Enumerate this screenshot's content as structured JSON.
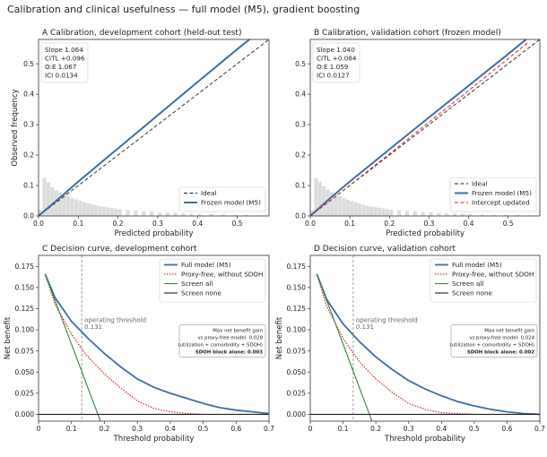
{
  "figure": {
    "title": "Calibration and clinical usefulness — full model (M5), gradient boosting"
  },
  "colors": {
    "model": "#3d6ea5",
    "ideal": "#222222",
    "updated": "#d62728",
    "proxy": "#d62728",
    "screen_all": "#2e8b3f",
    "screen_none": "#222222",
    "hist": "#dcdcdc",
    "threshold": "#888888"
  },
  "chart_data": [
    {
      "id": "A",
      "type": "line",
      "title": "A  Calibration, development cohort (held-out test)",
      "xlabel": "Predicted probability",
      "ylabel": "Observed frequency",
      "xlim": [
        0,
        0.58
      ],
      "ylim": [
        0,
        0.58
      ],
      "xticks": [
        "0.0",
        "0.1",
        "0.2",
        "0.3",
        "0.4",
        "0.5"
      ],
      "yticks": [
        "0.0",
        "0.1",
        "0.2",
        "0.3",
        "0.4",
        "0.5"
      ],
      "stats": [
        "Slope 1.064",
        "CITL +0.096",
        "O:E 1.067",
        "ICI 0.0134"
      ],
      "legend": {
        "position": "lower-right",
        "entries": [
          "Ideal",
          "Frozen model (M5)"
        ]
      },
      "histogram": {
        "bin_width": 0.01,
        "bin_starts": [
          0.0,
          0.01,
          0.02,
          0.03,
          0.04,
          0.05,
          0.06,
          0.07,
          0.08,
          0.09,
          0.1,
          0.11,
          0.12,
          0.13,
          0.14,
          0.15,
          0.16,
          0.17,
          0.18,
          0.19,
          0.2,
          0.22,
          0.24,
          0.26,
          0.28,
          0.3,
          0.32,
          0.34,
          0.36,
          0.38,
          0.4,
          0.43,
          0.46,
          0.49,
          0.52,
          0.55
        ],
        "heights": [
          0.02,
          0.125,
          0.11,
          0.095,
          0.085,
          0.078,
          0.072,
          0.066,
          0.06,
          0.055,
          0.05,
          0.045,
          0.041,
          0.038,
          0.035,
          0.032,
          0.03,
          0.028,
          0.026,
          0.024,
          0.022,
          0.02,
          0.018,
          0.016,
          0.014,
          0.012,
          0.011,
          0.01,
          0.009,
          0.008,
          0.007,
          0.006,
          0.005,
          0.004,
          0.003,
          0.002
        ]
      },
      "series": [
        {
          "name": "Ideal",
          "style": "dashed",
          "x": [
            0,
            0.58
          ],
          "y": [
            0,
            0.58
          ]
        },
        {
          "name": "Frozen model (M5)",
          "style": "solid",
          "x": [
            0,
            0.05,
            0.1,
            0.2,
            0.3,
            0.4,
            0.5,
            0.55
          ],
          "y": [
            0,
            0.056,
            0.113,
            0.222,
            0.331,
            0.44,
            0.548,
            0.6
          ]
        }
      ]
    },
    {
      "id": "B",
      "type": "line",
      "title": "B  Calibration, validation cohort (frozen model)",
      "xlabel": "Predicted probability",
      "ylabel": "",
      "xlim": [
        0,
        0.58
      ],
      "ylim": [
        0,
        0.58
      ],
      "xticks": [
        "0.0",
        "0.1",
        "0.2",
        "0.3",
        "0.4",
        "0.5"
      ],
      "yticks": [
        "0.0",
        "0.1",
        "0.2",
        "0.3",
        "0.4",
        "0.5"
      ],
      "stats": [
        "Slope 1.040",
        "CITL +0.084",
        "O:E 1.059",
        "ICI 0.0127"
      ],
      "legend": {
        "position": "lower-right",
        "entries": [
          "Ideal",
          "Frozen model (M5)",
          "Intercept updated"
        ]
      },
      "histogram": {
        "bin_width": 0.01,
        "bin_starts": [
          0.0,
          0.01,
          0.02,
          0.03,
          0.04,
          0.05,
          0.06,
          0.07,
          0.08,
          0.09,
          0.1,
          0.11,
          0.12,
          0.13,
          0.14,
          0.15,
          0.16,
          0.17,
          0.18,
          0.19,
          0.2,
          0.22,
          0.24,
          0.26,
          0.28,
          0.3,
          0.32,
          0.34,
          0.36,
          0.38,
          0.4,
          0.43,
          0.46,
          0.49,
          0.52,
          0.55
        ],
        "heights": [
          0.018,
          0.125,
          0.112,
          0.097,
          0.086,
          0.078,
          0.071,
          0.065,
          0.059,
          0.054,
          0.049,
          0.045,
          0.041,
          0.037,
          0.034,
          0.031,
          0.029,
          0.027,
          0.025,
          0.023,
          0.021,
          0.019,
          0.017,
          0.015,
          0.013,
          0.012,
          0.01,
          0.009,
          0.008,
          0.007,
          0.006,
          0.005,
          0.004,
          0.003,
          0.003,
          0.002
        ]
      },
      "series": [
        {
          "name": "Ideal",
          "style": "dashed",
          "x": [
            0,
            0.58
          ],
          "y": [
            0,
            0.58
          ]
        },
        {
          "name": "Frozen model (M5)",
          "style": "solid",
          "x": [
            0,
            0.05,
            0.1,
            0.2,
            0.3,
            0.4,
            0.5,
            0.55
          ],
          "y": [
            0,
            0.058,
            0.113,
            0.219,
            0.324,
            0.428,
            0.532,
            0.585
          ]
        },
        {
          "name": "Intercept updated",
          "style": "dashed",
          "x": [
            0,
            0.05,
            0.1,
            0.2,
            0.3,
            0.4,
            0.5,
            0.55
          ],
          "y": [
            0,
            0.05,
            0.101,
            0.204,
            0.308,
            0.412,
            0.517,
            0.57
          ]
        }
      ]
    },
    {
      "id": "C",
      "type": "line",
      "title": "C  Decision curve, development cohort",
      "xlabel": "Threshold probability",
      "ylabel": "Net benefit",
      "xlim": [
        0,
        0.7
      ],
      "ylim": [
        -0.008,
        0.188
      ],
      "xticks": [
        "0",
        "0.1",
        "0.2",
        "0.3",
        "0.4",
        "0.5",
        "0.6",
        "0.7"
      ],
      "yticks": [
        "0.000",
        "0.025",
        "0.050",
        "0.075",
        "0.100",
        "0.125",
        "0.150",
        "0.175"
      ],
      "legend": {
        "position": "top-right",
        "entries": [
          "Full model (M5)",
          "Proxy-free, without SDOH",
          "Screen all",
          "Screen none"
        ]
      },
      "threshold": {
        "x": 0.131,
        "label": "operating threshold",
        "value": "0.131"
      },
      "annotation": [
        "Max net benefit gain",
        "vs proxy-free model: 0.028",
        "(utilization + comorbidity + SDOH)",
        "SDOH block alone: 0.003"
      ],
      "series": [
        {
          "name": "Full model (M5)",
          "style": "solid",
          "x": [
            0.02,
            0.05,
            0.1,
            0.15,
            0.2,
            0.25,
            0.3,
            0.35,
            0.4,
            0.45,
            0.5,
            0.55,
            0.6,
            0.65,
            0.7
          ],
          "y": [
            0.166,
            0.138,
            0.11,
            0.09,
            0.072,
            0.056,
            0.042,
            0.032,
            0.025,
            0.019,
            0.013,
            0.008,
            0.005,
            0.003,
            0.001
          ]
        },
        {
          "name": "Proxy-free, without SDOH",
          "style": "dotted",
          "x": [
            0.02,
            0.05,
            0.1,
            0.13,
            0.15,
            0.2,
            0.25,
            0.3,
            0.35,
            0.4,
            0.45,
            0.5
          ],
          "y": [
            0.166,
            0.13,
            0.095,
            0.078,
            0.068,
            0.048,
            0.031,
            0.016,
            0.007,
            0.003,
            0.001,
            0.0
          ]
        },
        {
          "name": "Screen all",
          "style": "solid",
          "x": [
            0.02,
            0.188
          ],
          "y": [
            0.166,
            -0.008
          ]
        },
        {
          "name": "Screen none",
          "style": "solid",
          "x": [
            0,
            0.7
          ],
          "y": [
            0,
            0
          ]
        }
      ]
    },
    {
      "id": "D",
      "type": "line",
      "title": "D  Decision curve, validation cohort",
      "xlabel": "Threshold probability",
      "ylabel": "Net benefit",
      "xlim": [
        0,
        0.7
      ],
      "ylim": [
        -0.008,
        0.188
      ],
      "xticks": [
        "0",
        "0.1",
        "0.2",
        "0.3",
        "0.4",
        "0.5",
        "0.6",
        "0.7"
      ],
      "yticks": [
        "0.000",
        "0.025",
        "0.050",
        "0.075",
        "0.100",
        "0.125",
        "0.150",
        "0.175"
      ],
      "legend": {
        "position": "top-right",
        "entries": [
          "Full model (M5)",
          "Proxy-free, without SDOH",
          "Screen all",
          "Screen none"
        ]
      },
      "threshold": {
        "x": 0.131,
        "label": "operating threshold",
        "value": "0.131"
      },
      "annotation": [
        "Max net benefit gain",
        "vs proxy-free model: 0.024",
        "(utilization + comorbidity + SDOH)",
        "SDOH block alone: 0.002"
      ],
      "series": [
        {
          "name": "Full model (M5)",
          "style": "solid",
          "x": [
            0.02,
            0.05,
            0.1,
            0.15,
            0.2,
            0.25,
            0.3,
            0.35,
            0.4,
            0.45,
            0.5,
            0.55,
            0.6,
            0.65,
            0.7
          ],
          "y": [
            0.166,
            0.136,
            0.107,
            0.086,
            0.068,
            0.053,
            0.04,
            0.03,
            0.022,
            0.015,
            0.01,
            0.006,
            0.003,
            0.001,
            0.0
          ]
        },
        {
          "name": "Proxy-free, without SDOH",
          "style": "dotted",
          "x": [
            0.02,
            0.05,
            0.1,
            0.13,
            0.15,
            0.2,
            0.25,
            0.3,
            0.35,
            0.4,
            0.45,
            0.5
          ],
          "y": [
            0.166,
            0.128,
            0.09,
            0.073,
            0.062,
            0.042,
            0.026,
            0.013,
            0.006,
            0.002,
            0.001,
            0.0
          ]
        },
        {
          "name": "Screen all",
          "style": "solid",
          "x": [
            0.02,
            0.188
          ],
          "y": [
            0.166,
            -0.008
          ]
        },
        {
          "name": "Screen none",
          "style": "solid",
          "x": [
            0,
            0.7
          ],
          "y": [
            0,
            0
          ]
        }
      ]
    }
  ]
}
